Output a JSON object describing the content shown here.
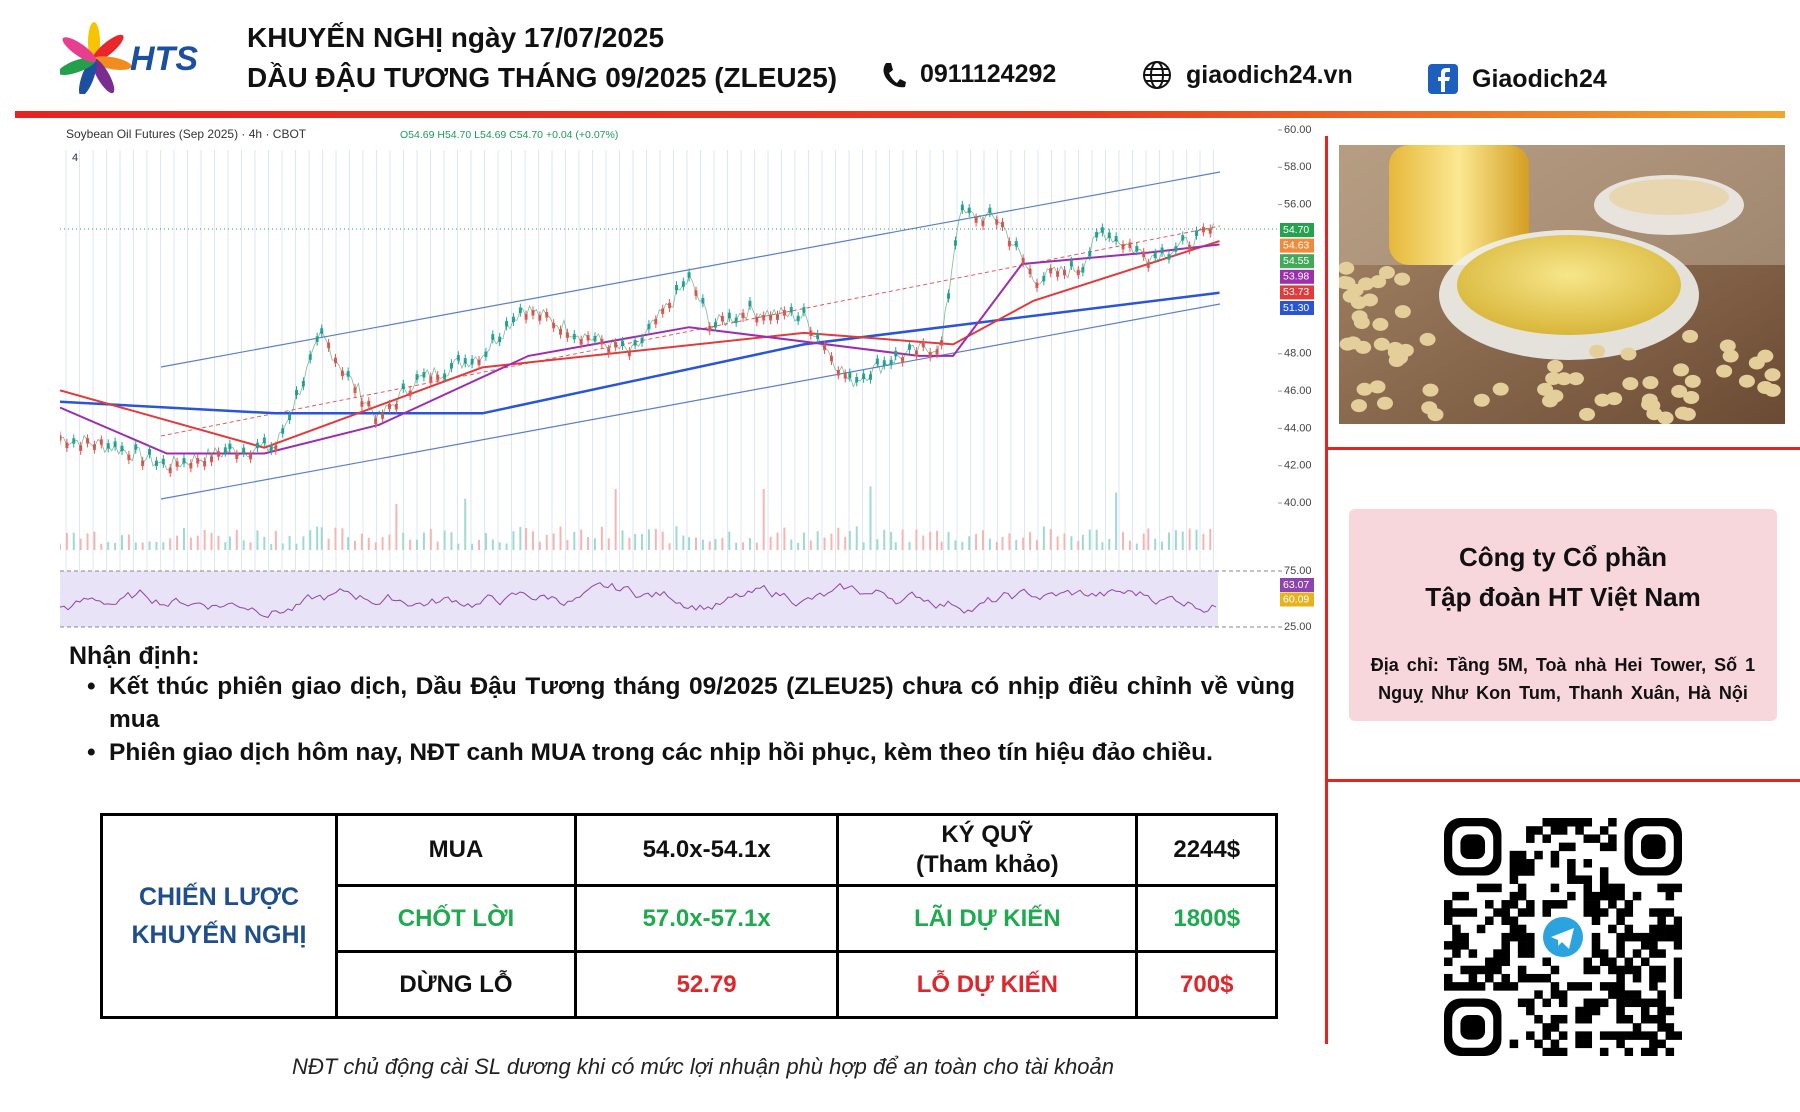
{
  "header": {
    "logo": "HTS",
    "title_line1": "KHUYẾN NGHỊ ngày 17/07/2025",
    "title_line2": "DẦU ĐẬU TƯƠNG THÁNG 09/2025 (ZLEU25)",
    "phone": "0911124292",
    "website": "giaodich24.vn",
    "facebook": "Giaodich24"
  },
  "chart": {
    "instrument": "Soybean Oil Futures (Sep 2025) · 4h · CBOT",
    "ohlc": "O54.69 H54.70 L54.69 C54.70 +0.04 (+0.07%)",
    "interval": "4",
    "yticks": [
      {
        "value": 60,
        "label": "60.00"
      },
      {
        "value": 58,
        "label": "58.00"
      },
      {
        "value": 56,
        "label": "56.00"
      },
      {
        "value": 48,
        "label": "48.00"
      },
      {
        "value": 46,
        "label": "46.00"
      },
      {
        "value": 44,
        "label": "44.00"
      },
      {
        "value": 42,
        "label": "42.00"
      },
      {
        "value": 40,
        "label": "40.00"
      }
    ],
    "price_tags": [
      {
        "label": "54.70",
        "color": "#26a24f"
      },
      {
        "label": "54.63",
        "color": "#f08a3c"
      },
      {
        "label": "54.55",
        "color": "#43a85a"
      },
      {
        "label": "53.98",
        "color": "#9b2fae"
      },
      {
        "label": "53.73",
        "color": "#e23b3b"
      },
      {
        "label": "51.30",
        "color": "#2a56d6"
      }
    ],
    "rsi_ticks": [
      {
        "value": 75,
        "label": "75.00"
      },
      {
        "value": 25,
        "label": "25.00"
      }
    ],
    "rsi_tags": [
      {
        "label": "63.07",
        "color": "#8e44ad"
      },
      {
        "label": "60.09",
        "color": "#e6b31e"
      }
    ]
  },
  "analysis": {
    "heading": "Nhận định:",
    "bullets": [
      "Kết thúc phiên giao dịch, Dầu Đậu Tương tháng 09/2025 (ZLEU25) chưa có nhịp điều chỉnh về vùng mua",
      "Phiên giao dịch hôm nay, NĐT canh MUA trong các nhịp hồi phục, kèm theo tín hiệu đảo chiều."
    ]
  },
  "table": {
    "strategy": "CHIẾN LƯỢC\nKHUYẾN NGHỊ",
    "rows": [
      [
        "MUA",
        "54.0x-54.1x",
        "KÝ QUỸ\n(Tham khảo)",
        "2244$"
      ],
      [
        "CHỐT LỜI",
        "57.0x-57.1x",
        "LÃI DỰ KIẾN",
        "1800$"
      ],
      [
        "DỪNG LỖ",
        "52.79",
        "LỖ DỰ KIẾN",
        "700$"
      ]
    ]
  },
  "company": {
    "name": "Công ty Cổ phần\nTập đoàn HT Việt Nam",
    "address": "Địa chỉ: Tầng 5M, Toà nhà Hei Tower, Số 1 Nguỵ Như Kon Tum, Thanh Xuân, Hà Nội"
  },
  "footer": "NĐT chủ động cài SL dương khi có mức lợi nhuận phù hợp để an toàn cho tài khoản"
}
